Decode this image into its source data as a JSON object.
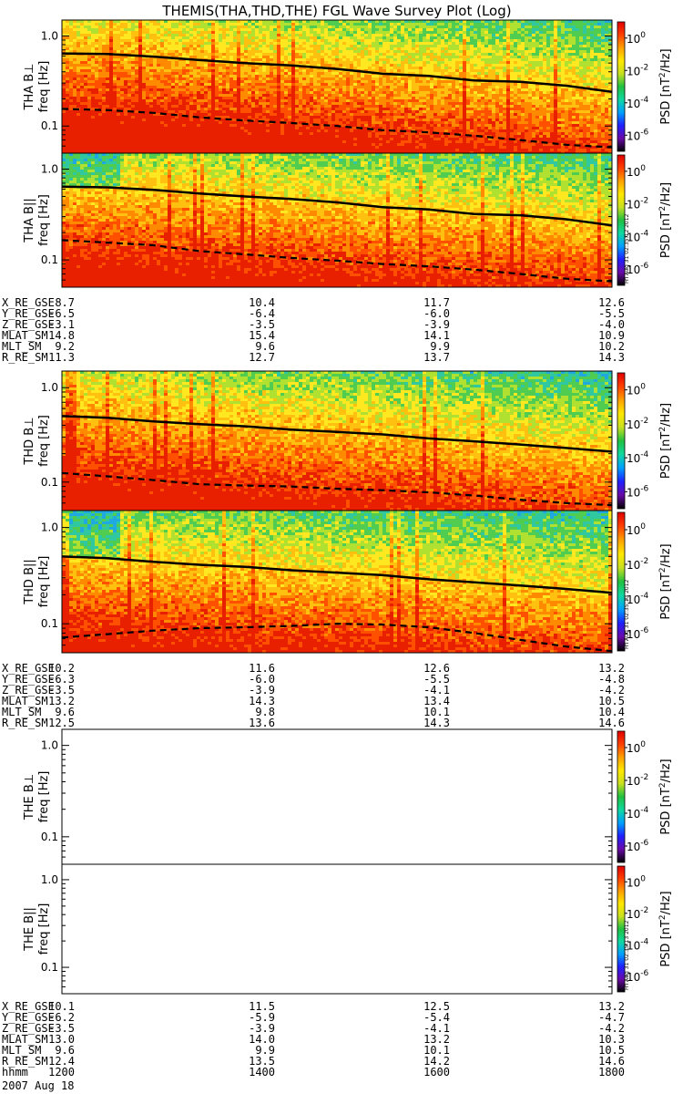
{
  "chart_data": {
    "type": "heatmap",
    "title": "THEMIS(THA,THD,THE) FGL Wave Survey Plot (Log)",
    "colorbar": {
      "label": "PSD [nT^2/Hz]",
      "label_parts": [
        "PSD [nT",
        "2",
        "/Hz]"
      ],
      "ticks": [
        {
          "base": "10",
          "exp": "0",
          "value": 1
        },
        {
          "base": "10",
          "exp": "-2",
          "value": 0.01
        },
        {
          "base": "10",
          "exp": "-4",
          "value": 0.0001
        },
        {
          "base": "10",
          "exp": "-6",
          "value": 1e-06
        }
      ],
      "range": [
        1e-07,
        10
      ],
      "scale": "log",
      "colors": [
        "#000000",
        "#6a0aa8",
        "#2020ff",
        "#00a0ff",
        "#10d8a0",
        "#20c040",
        "#c8e020",
        "#ffe800",
        "#ffa000",
        "#ff4000",
        "#e00000"
      ]
    },
    "y_axis": {
      "label": "freq [Hz]",
      "scale": "log",
      "ylim": [
        0.05,
        1.5
      ],
      "ticks": [
        {
          "v": 1.0,
          "t": "1.0"
        },
        {
          "v": 0.1,
          "t": "0.1"
        }
      ]
    },
    "x_axis": {
      "xlim": [
        1200,
        1800
      ]
    },
    "panels": [
      {
        "probe": "THA",
        "component": "B⊥",
        "ylabel": "THA B⊥",
        "has_data": true,
        "stamp": "",
        "solid_line": [
          [
            1200,
            0.64
          ],
          [
            1250,
            0.63
          ],
          [
            1300,
            0.59
          ],
          [
            1350,
            0.54
          ],
          [
            1400,
            0.5
          ],
          [
            1450,
            0.47
          ],
          [
            1500,
            0.43
          ],
          [
            1550,
            0.38
          ],
          [
            1600,
            0.36
          ],
          [
            1650,
            0.32
          ],
          [
            1700,
            0.31
          ],
          [
            1750,
            0.28
          ],
          [
            1800,
            0.24
          ]
        ],
        "dashed_line": [
          [
            1200,
            0.155
          ],
          [
            1250,
            0.15
          ],
          [
            1300,
            0.14
          ],
          [
            1350,
            0.125
          ],
          [
            1400,
            0.115
          ],
          [
            1450,
            0.108
          ],
          [
            1500,
            0.1
          ],
          [
            1550,
            0.09
          ],
          [
            1600,
            0.085
          ],
          [
            1650,
            0.078
          ],
          [
            1700,
            0.07
          ],
          [
            1750,
            0.062
          ],
          [
            1800,
            0.058
          ]
        ]
      },
      {
        "probe": "THA",
        "component": "B||",
        "ylabel": "THA B||",
        "has_data": true,
        "stamp": "Fri Aug 31 02:35:12 2012",
        "solid_line": [
          [
            1200,
            0.64
          ],
          [
            1250,
            0.63
          ],
          [
            1300,
            0.59
          ],
          [
            1350,
            0.54
          ],
          [
            1400,
            0.5
          ],
          [
            1450,
            0.47
          ],
          [
            1500,
            0.43
          ],
          [
            1550,
            0.38
          ],
          [
            1600,
            0.36
          ],
          [
            1650,
            0.32
          ],
          [
            1700,
            0.31
          ],
          [
            1750,
            0.28
          ],
          [
            1800,
            0.24
          ]
        ],
        "dashed_line": [
          [
            1200,
            0.165
          ],
          [
            1250,
            0.155
          ],
          [
            1300,
            0.145
          ],
          [
            1350,
            0.125
          ],
          [
            1400,
            0.115
          ],
          [
            1450,
            0.105
          ],
          [
            1500,
            0.098
          ],
          [
            1550,
            0.09
          ],
          [
            1600,
            0.085
          ],
          [
            1650,
            0.078
          ],
          [
            1700,
            0.07
          ],
          [
            1750,
            0.062
          ],
          [
            1800,
            0.058
          ]
        ]
      },
      {
        "probe": "THD",
        "component": "B⊥",
        "ylabel": "THD B⊥",
        "has_data": true,
        "stamp": "",
        "solid_line": [
          [
            1200,
            0.5
          ],
          [
            1250,
            0.48
          ],
          [
            1300,
            0.44
          ],
          [
            1350,
            0.41
          ],
          [
            1400,
            0.39
          ],
          [
            1450,
            0.36
          ],
          [
            1500,
            0.34
          ],
          [
            1550,
            0.32
          ],
          [
            1600,
            0.29
          ],
          [
            1650,
            0.27
          ],
          [
            1700,
            0.25
          ],
          [
            1750,
            0.23
          ],
          [
            1800,
            0.21
          ]
        ],
        "dashed_line": [
          [
            1200,
            0.125
          ],
          [
            1250,
            0.115
          ],
          [
            1300,
            0.105
          ],
          [
            1350,
            0.095
          ],
          [
            1400,
            0.092
          ],
          [
            1450,
            0.09
          ],
          [
            1500,
            0.085
          ],
          [
            1550,
            0.082
          ],
          [
            1600,
            0.078
          ],
          [
            1650,
            0.072
          ],
          [
            1700,
            0.065
          ],
          [
            1750,
            0.06
          ],
          [
            1800,
            0.057
          ]
        ]
      },
      {
        "probe": "THD",
        "component": "B||",
        "ylabel": "THD B||",
        "has_data": true,
        "stamp": "Fri Aug 31 02:35:13 2012",
        "solid_line": [
          [
            1200,
            0.5
          ],
          [
            1250,
            0.48
          ],
          [
            1300,
            0.44
          ],
          [
            1350,
            0.41
          ],
          [
            1400,
            0.39
          ],
          [
            1450,
            0.36
          ],
          [
            1500,
            0.34
          ],
          [
            1550,
            0.32
          ],
          [
            1600,
            0.29
          ],
          [
            1650,
            0.27
          ],
          [
            1700,
            0.25
          ],
          [
            1750,
            0.23
          ],
          [
            1800,
            0.21
          ]
        ],
        "dashed_line": [
          [
            1200,
            0.072
          ],
          [
            1250,
            0.078
          ],
          [
            1300,
            0.085
          ],
          [
            1350,
            0.09
          ],
          [
            1400,
            0.092
          ],
          [
            1450,
            0.095
          ],
          [
            1500,
            0.1
          ],
          [
            1550,
            0.098
          ],
          [
            1600,
            0.092
          ],
          [
            1650,
            0.08
          ],
          [
            1700,
            0.068
          ],
          [
            1750,
            0.058
          ],
          [
            1800,
            0.052
          ]
        ]
      },
      {
        "probe": "THE",
        "component": "B⊥",
        "ylabel": "THE B⊥",
        "has_data": false,
        "stamp": ""
      },
      {
        "probe": "THE",
        "component": "B||",
        "ylabel": "THE B||",
        "has_data": false,
        "stamp": "Fri Aug 31 02:35:13 2012"
      }
    ],
    "ephemeris_tables": [
      {
        "probe": "THA",
        "rows": [
          {
            "name": "X_RE_GSE",
            "values": [
              "8.7",
              "10.4",
              "11.7",
              "12.6"
            ]
          },
          {
            "name": "Y_RE_GSE",
            "values": [
              "-6.5",
              "-6.4",
              "-6.0",
              "-5.5"
            ]
          },
          {
            "name": "Z_RE_GSE",
            "values": [
              "-3.1",
              "-3.5",
              "-3.9",
              "-4.0"
            ]
          },
          {
            "name": "MLAT_SM",
            "values": [
              "14.8",
              "15.4",
              "14.1",
              "10.9"
            ]
          },
          {
            "name": "MLT_SM",
            "values": [
              "9.2",
              "9.6",
              "9.9",
              "10.2"
            ]
          },
          {
            "name": "R_RE_SM",
            "values": [
              "11.3",
              "12.7",
              "13.7",
              "14.3"
            ]
          }
        ]
      },
      {
        "probe": "THD",
        "rows": [
          {
            "name": "X_RE_GSE",
            "values": [
              "10.2",
              "11.6",
              "12.6",
              "13.2"
            ]
          },
          {
            "name": "Y_RE_GSE",
            "values": [
              "-6.3",
              "-6.0",
              "-5.5",
              "-4.8"
            ]
          },
          {
            "name": "Z_RE_GSE",
            "values": [
              "-3.5",
              "-3.9",
              "-4.1",
              "-4.2"
            ]
          },
          {
            "name": "MLAT_SM",
            "values": [
              "13.2",
              "14.3",
              "13.4",
              "10.5"
            ]
          },
          {
            "name": "MLT_SM",
            "values": [
              "9.6",
              "9.8",
              "10.1",
              "10.4"
            ]
          },
          {
            "name": "R_RE_SM",
            "values": [
              "12.5",
              "13.6",
              "14.3",
              "14.6"
            ]
          }
        ]
      },
      {
        "probe": "THE",
        "rows": [
          {
            "name": "X_RE_GSE",
            "values": [
              "10.1",
              "11.5",
              "12.5",
              "13.2"
            ]
          },
          {
            "name": "Y_RE_GSE",
            "values": [
              "-6.2",
              "-5.9",
              "-5.4",
              "-4.7"
            ]
          },
          {
            "name": "Z_RE_GSE",
            "values": [
              "-3.5",
              "-3.9",
              "-4.1",
              "-4.2"
            ]
          },
          {
            "name": "MLAT_SM",
            "values": [
              "13.0",
              "14.0",
              "13.2",
              "10.3"
            ]
          },
          {
            "name": "MLT_SM",
            "values": [
              "9.6",
              "9.9",
              "10.1",
              "10.5"
            ]
          },
          {
            "name": "R_RE_SM",
            "values": [
              "12.4",
              "13.5",
              "14.2",
              "14.6"
            ]
          },
          {
            "name": "hhmm",
            "values": [
              "1200",
              "1400",
              "1600",
              "1800"
            ]
          }
        ]
      }
    ],
    "date_label": "2007 Aug 18"
  }
}
